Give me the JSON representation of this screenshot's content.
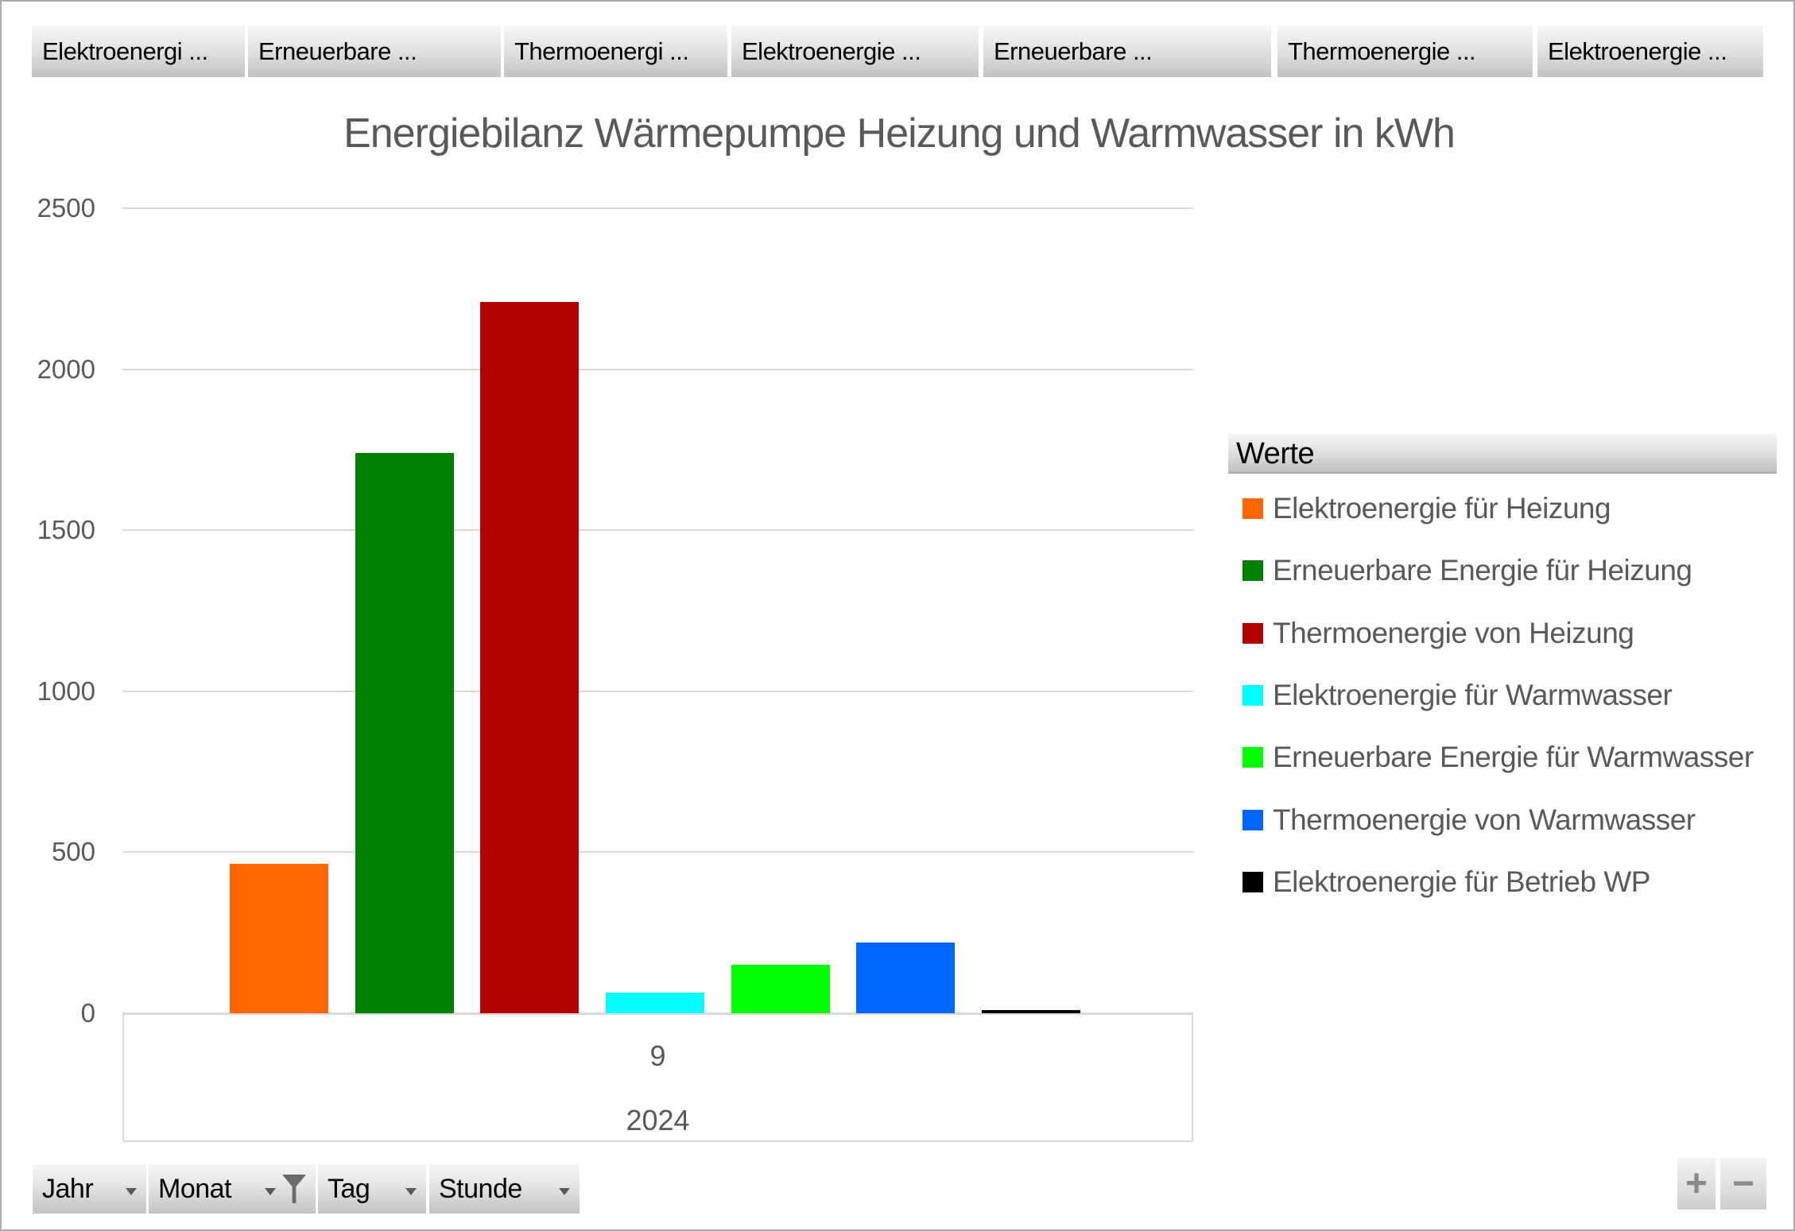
{
  "title": "Energiebilanz Wärmepumpe Heizung und Warmwasser in kWh",
  "field_buttons": [
    {
      "label": "Elektroenergi ..."
    },
    {
      "label": "Erneuerbare ..."
    },
    {
      "label": "Thermoenergi ..."
    },
    {
      "label": "Elektroenergie ..."
    },
    {
      "label": "Erneuerbare ..."
    },
    {
      "label": "Thermoenergie ..."
    },
    {
      "label": "Elektroenergie ..."
    }
  ],
  "legend": {
    "header": "Werte"
  },
  "chart_data": {
    "type": "bar",
    "title": "Energiebilanz Wärmepumpe Heizung und Warmwasser in kWh",
    "unit": "kWh",
    "categories": [
      "9"
    ],
    "category_axis": {
      "month": "9",
      "year": "2024"
    },
    "series": [
      {
        "name": "Elektroenergie für Heizung",
        "color": "#FF6600",
        "values": [
          465
        ]
      },
      {
        "name": "Erneuerbare Energie für Heizung",
        "color": "#008000",
        "values": [
          1740
        ]
      },
      {
        "name": "Thermoenergie von Heizung",
        "color": "#B00000",
        "values": [
          2210
        ]
      },
      {
        "name": "Elektroenergie für Warmwasser",
        "color": "#00FFFF",
        "values": [
          65
        ]
      },
      {
        "name": "Erneuerbare Energie für Warmwasser",
        "color": "#00FF00",
        "values": [
          150
        ]
      },
      {
        "name": "Thermoenergie von Warmwasser",
        "color": "#0066FF",
        "values": [
          220
        ]
      },
      {
        "name": "Elektroenergie für Betrieb WP",
        "color": "#000000",
        "values": [
          10
        ]
      }
    ],
    "ylim": [
      0,
      2500
    ],
    "yticks": [
      0,
      500,
      1000,
      1500,
      2000,
      2500
    ],
    "grid": true,
    "legend_position": "right",
    "colors": {
      "axis_text": "#595959",
      "gridline": "#D9D9D9",
      "title_text": "#595959"
    }
  },
  "axis_filters": [
    {
      "label": "Jahr",
      "filtered": false
    },
    {
      "label": "Monat",
      "filtered": true
    },
    {
      "label": "Tag",
      "filtered": false
    },
    {
      "label": "Stunde",
      "filtered": false
    }
  ],
  "zoom_controls": {
    "zoom_in": "+",
    "zoom_out": "−"
  }
}
